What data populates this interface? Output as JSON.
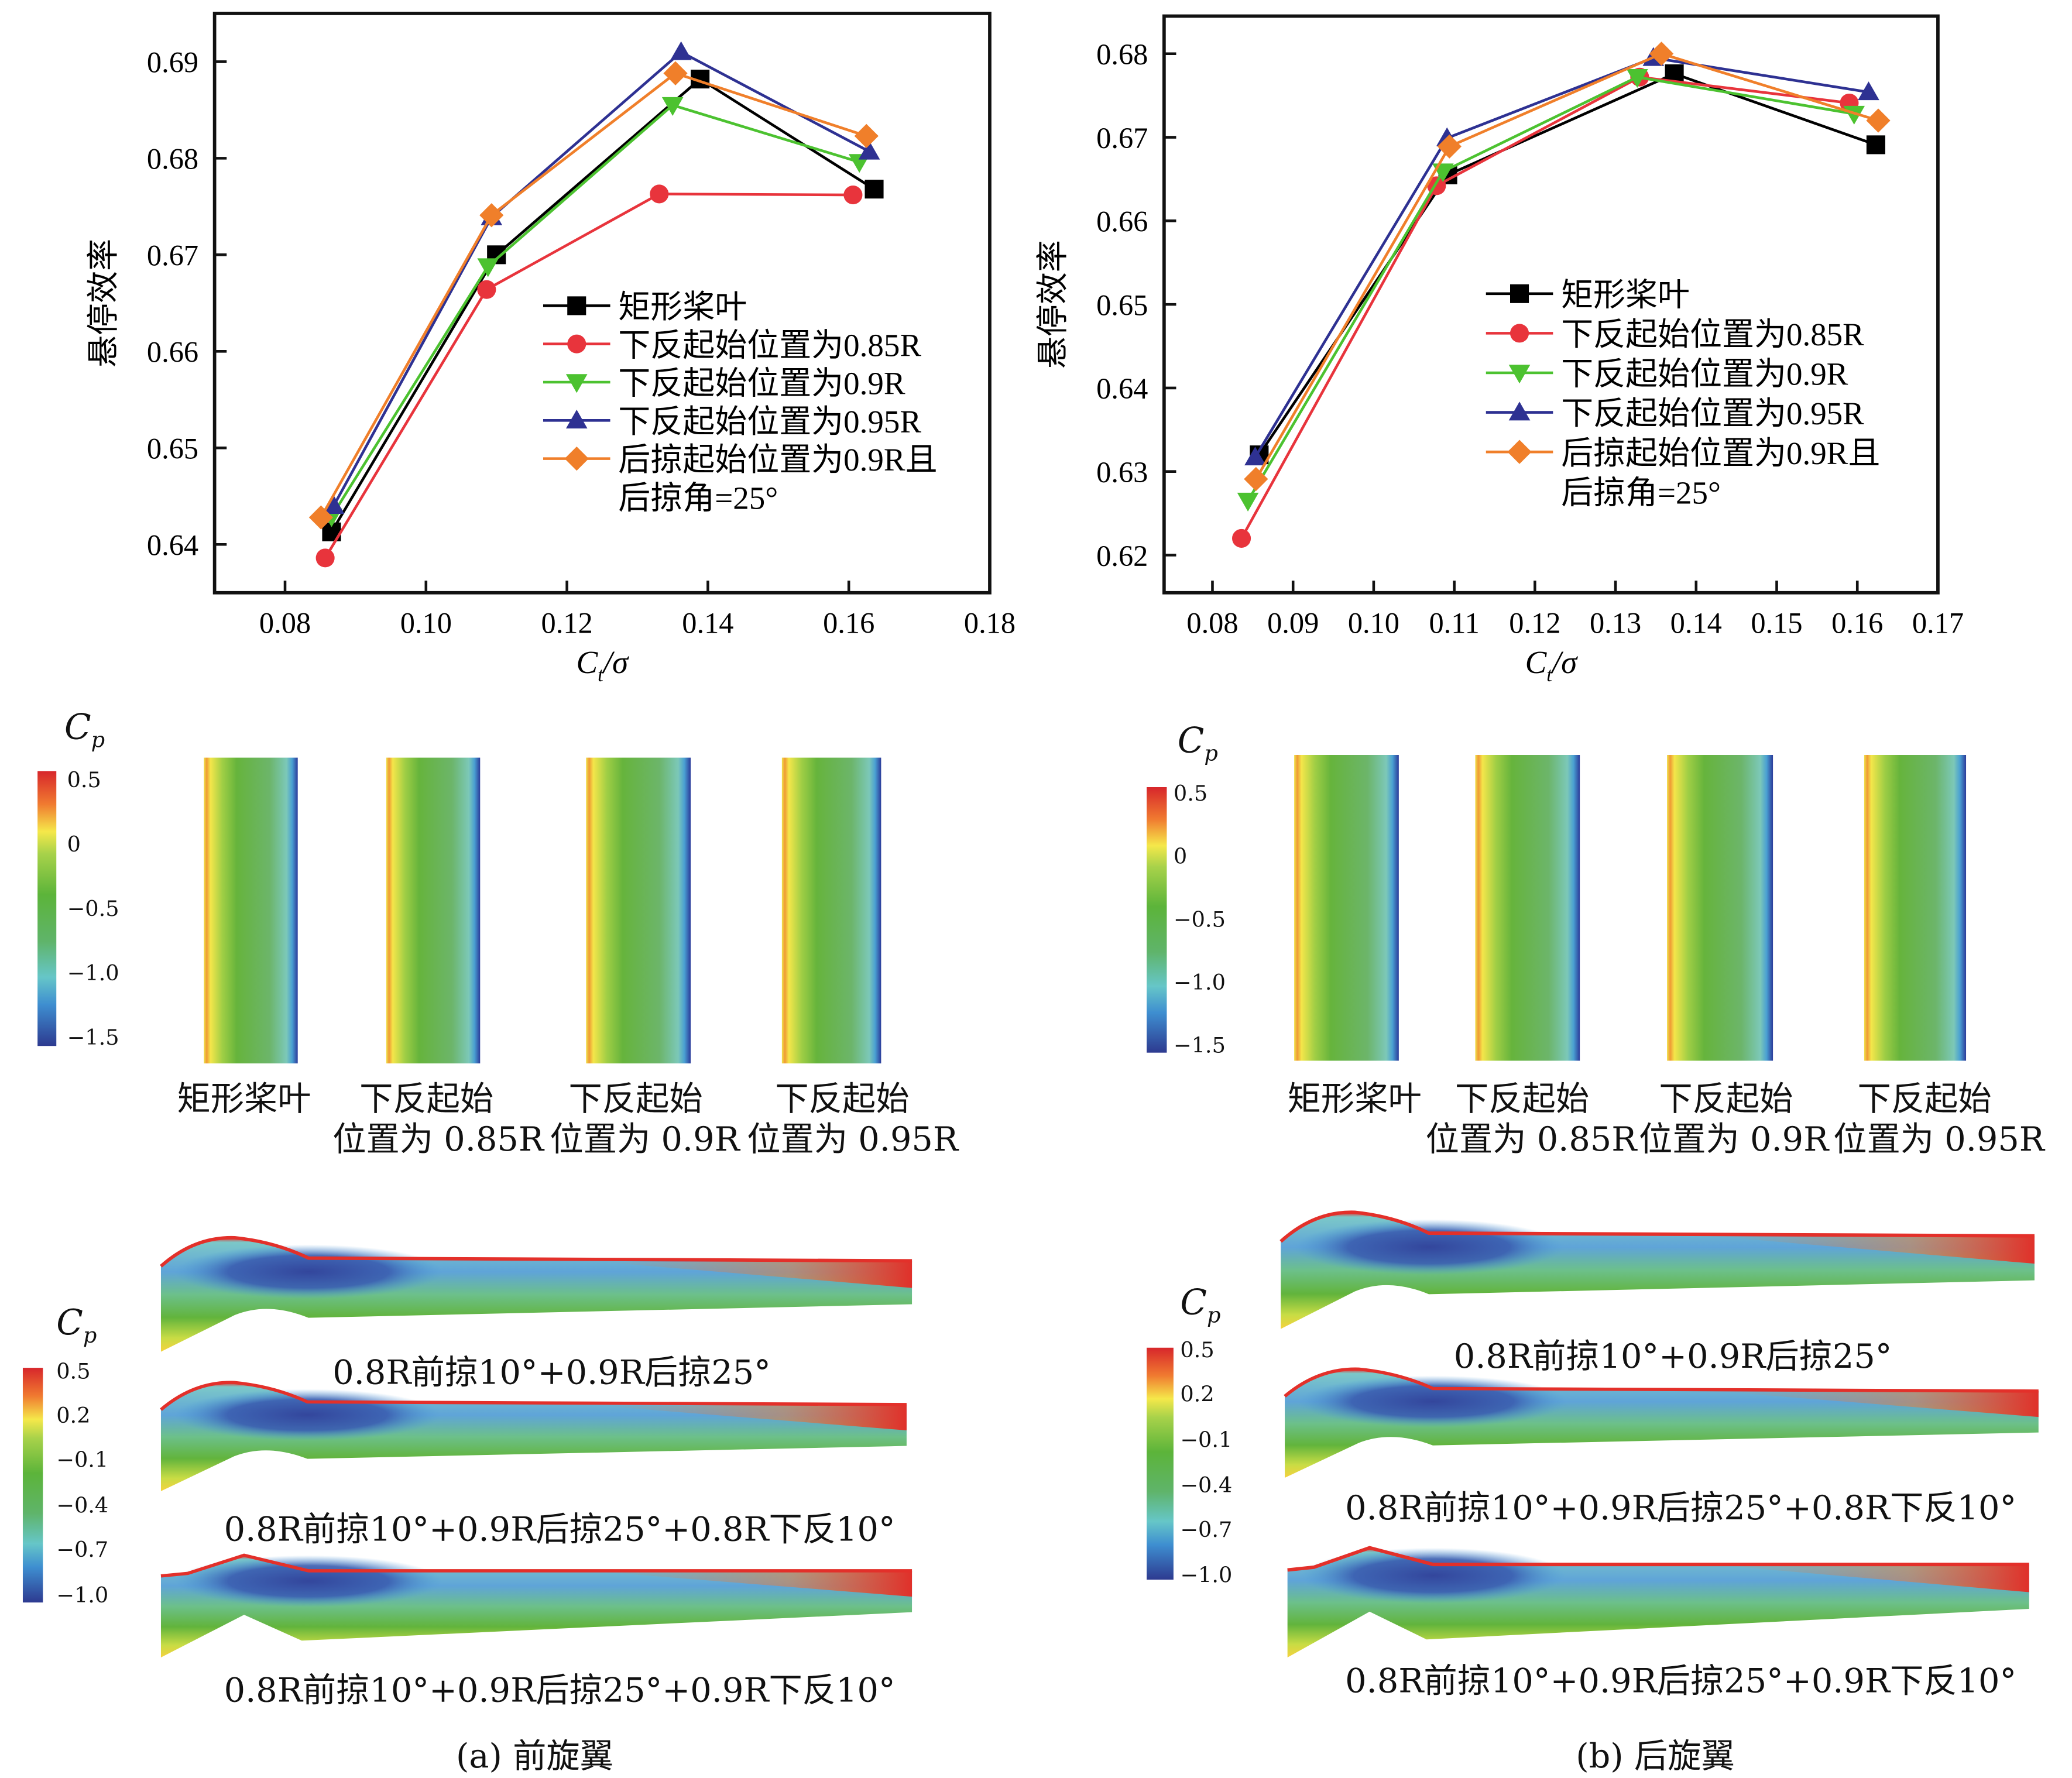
{
  "chart_data": [
    {
      "type": "line",
      "panel": "a",
      "ylabel": "悬停效率",
      "xlabel": {
        "base": "C",
        "sub": "t",
        "rest": "/σ"
      },
      "xlim": [
        0.07,
        0.18
      ],
      "ylim": [
        0.635,
        0.695
      ],
      "xticks": [
        "0.08",
        "0.10",
        "0.12",
        "0.14",
        "0.16",
        "0.18"
      ],
      "yticks": [
        "0.64",
        "0.65",
        "0.66",
        "0.67",
        "0.68",
        "0.69"
      ],
      "grid": false,
      "legend_position": "center-right",
      "series": [
        {
          "name": "矩形桨叶",
          "color": "#000000",
          "marker": "square",
          "x": [
            0.0866,
            0.11,
            0.1389,
            0.1636
          ],
          "y": [
            0.6413,
            0.67,
            0.6882,
            0.6768
          ]
        },
        {
          "name": "下反起始位置为0.85R",
          "color": "#e8343c",
          "marker": "circle",
          "x": [
            0.0857,
            0.1086,
            0.1331,
            0.1606
          ],
          "y": [
            0.6386,
            0.6664,
            0.6763,
            0.6762
          ]
        },
        {
          "name": "下反起始位置为0.9R",
          "color": "#4cc230",
          "marker": "triangle-down",
          "x": [
            0.0866,
            0.1088,
            0.135,
            0.1615
          ],
          "y": [
            0.6429,
            0.6688,
            0.6855,
            0.6796
          ]
        },
        {
          "name": "下反起始位置为0.95R",
          "color": "#2e3192",
          "marker": "triangle-up",
          "x": [
            0.0869,
            0.1093,
            0.1362,
            0.1629
          ],
          "y": [
            0.644,
            0.6739,
            0.691,
            0.6807
          ]
        },
        {
          "name": "后掠起始位置为0.9R且",
          "name_line2": "后掠角=25°",
          "color": "#f07f2a",
          "marker": "diamond",
          "x": [
            0.0851,
            0.1093,
            0.1354,
            0.1625
          ],
          "y": [
            0.6428,
            0.6741,
            0.6888,
            0.6823
          ]
        }
      ]
    },
    {
      "type": "line",
      "panel": "b",
      "ylabel": "悬停效率",
      "xlabel": {
        "base": "C",
        "sub": "t",
        "rest": "/σ"
      },
      "xlim": [
        0.074,
        0.17
      ],
      "ylim": [
        0.6155,
        0.6845
      ],
      "xticks": [
        "0.08",
        "0.09",
        "0.10",
        "0.11",
        "0.12",
        "0.13",
        "0.14",
        "0.15",
        "0.16",
        "0.17"
      ],
      "yticks": [
        "0.62",
        "0.63",
        "0.64",
        "0.65",
        "0.66",
        "0.67",
        "0.68"
      ],
      "grid": false,
      "legend_position": "center-right",
      "series": [
        {
          "name": "矩形桨叶",
          "color": "#000000",
          "marker": "square",
          "x": [
            0.0858,
            0.1092,
            0.1373,
            0.1623
          ],
          "y": [
            0.632,
            0.6655,
            0.6776,
            0.6691
          ]
        },
        {
          "name": "下反起始位置为0.85R",
          "color": "#e8343c",
          "marker": "circle",
          "x": [
            0.0836,
            0.1078,
            0.133,
            0.159
          ],
          "y": [
            0.622,
            0.6642,
            0.6772,
            0.6741
          ]
        },
        {
          "name": "下反起始位置为0.9R",
          "color": "#4cc230",
          "marker": "triangle-down",
          "x": [
            0.0844,
            0.1086,
            0.1327,
            0.1596
          ],
          "y": [
            0.6265,
            0.6659,
            0.6772,
            0.6728
          ]
        },
        {
          "name": "下反起始位置为0.95R",
          "color": "#2e3192",
          "marker": "triangle-up",
          "x": [
            0.0853,
            0.1091,
            0.1347,
            0.1614
          ],
          "y": [
            0.6317,
            0.6699,
            0.6795,
            0.6754
          ]
        },
        {
          "name": "后掠起始位置为0.9R且",
          "name_line2": "后掠角=25°",
          "color": "#f07f2a",
          "marker": "diamond",
          "x": [
            0.0854,
            0.1094,
            0.1357,
            0.1626
          ],
          "y": [
            0.6291,
            0.6689,
            0.68,
            0.672
          ]
        }
      ]
    }
  ],
  "contours": {
    "cp_label": {
      "base": "C",
      "sub": "p"
    },
    "left": {
      "blade_colorbar": [
        "0.5",
        "0",
        "−0.5",
        "−1.0",
        "−1.5"
      ],
      "blade_labels": [
        {
          "l1": "矩形桨叶",
          "l2": ""
        },
        {
          "l1": "下反起始",
          "l2": "位置为 0.85R"
        },
        {
          "l1": "下反起始",
          "l2": "位置为 0.9R"
        },
        {
          "l1": "下反起始",
          "l2": "位置为 0.95R"
        }
      ],
      "wing_colorbar": [
        "0.5",
        "0.2",
        "−0.1",
        "−0.4",
        "−0.7",
        "−1.0"
      ],
      "wing_labels": [
        "0.8R前掠10°+0.9R后掠25°",
        "0.8R前掠10°+0.9R后掠25°+0.8R下反10°",
        "0.8R前掠10°+0.9R后掠25°+0.9R下反10°"
      ],
      "caption": "(a) 前旋翼"
    },
    "right": {
      "blade_colorbar": [
        "0.5",
        "0",
        "−0.5",
        "−1.0",
        "−1.5"
      ],
      "blade_labels": [
        {
          "l1": "矩形桨叶",
          "l2": ""
        },
        {
          "l1": "下反起始",
          "l2": "位置为 0.85R"
        },
        {
          "l1": "下反起始",
          "l2": "位置为 0.9R"
        },
        {
          "l1": "下反起始",
          "l2": "位置为 0.95R"
        }
      ],
      "wing_colorbar": [
        "0.5",
        "0.2",
        "−0.1",
        "−0.4",
        "−0.7",
        "−1.0"
      ],
      "wing_labels": [
        "0.8R前掠10°+0.9R后掠25°",
        "0.8R前掠10°+0.9R后掠25°+0.8R下反10°",
        "0.8R前掠10°+0.9R后掠25°+0.9R下反10°"
      ],
      "caption": "(b) 后旋翼"
    }
  }
}
